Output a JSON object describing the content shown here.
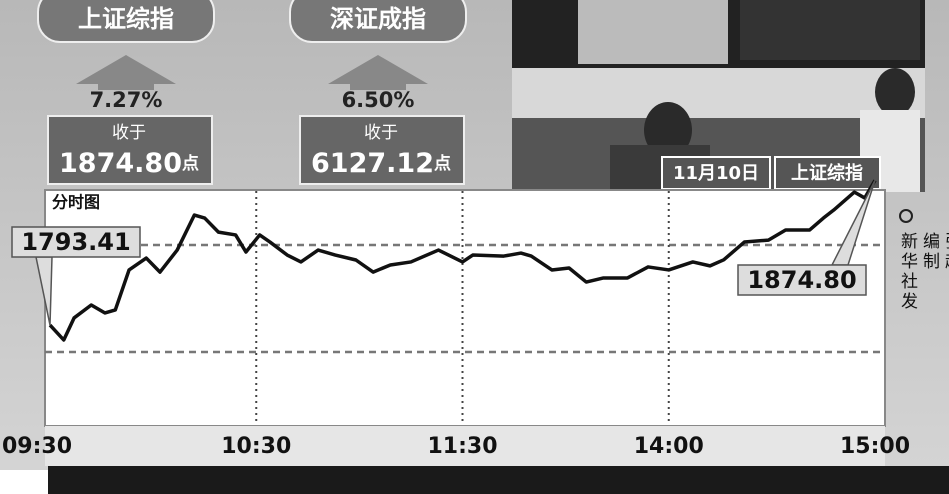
{
  "panels": [
    {
      "title": "上证综指",
      "change": "7.27%",
      "caption": "收于",
      "value": "1874.80",
      "unit": "点"
    },
    {
      "title": "深证成指",
      "change": "6.50%",
      "caption": "收于",
      "value": "6127.12",
      "unit": "点"
    }
  ],
  "photo": {
    "date": "11月10日",
    "index": "上证综指"
  },
  "credit": [
    "张越",
    "编制",
    "新华社发"
  ],
  "chart_data": {
    "type": "line",
    "title": "分时图",
    "x": [
      0,
      4,
      7,
      12,
      16,
      19,
      23,
      28,
      32,
      37,
      42,
      45,
      49,
      54,
      57,
      61,
      64,
      69,
      73,
      78,
      83,
      89,
      94,
      99,
      105,
      113,
      120,
      123,
      132,
      137,
      140,
      146,
      151,
      156,
      161,
      168,
      174,
      180,
      187,
      192,
      196,
      202,
      209,
      214,
      221,
      225,
      228,
      234,
      237,
      240
    ],
    "series": [
      {
        "color": "#111111",
        "values": [
          1793.41,
          1785.0,
          1797.4,
          1804.7,
          1800.2,
          1801.9,
          1824.4,
          1831.1,
          1823.2,
          1835.6,
          1855.3,
          1853.6,
          1845.7,
          1844.1,
          1834.5,
          1844.1,
          1840.1,
          1832.8,
          1828.9,
          1835.6,
          1832.8,
          1830.0,
          1823.2,
          1827.2,
          1828.9,
          1835.6,
          1828.9,
          1832.8,
          1832.2,
          1833.9,
          1832.2,
          1824.4,
          1825.5,
          1817.6,
          1819.9,
          1819.9,
          1826.1,
          1824.4,
          1828.9,
          1826.7,
          1830.1,
          1840.1,
          1841.2,
          1846.9,
          1846.9,
          1853.6,
          1858.1,
          1868.2,
          1864.9,
          1874.8
        ],
        "value_labels": [
          "1793.41",
          null,
          null,
          null,
          null,
          null,
          null,
          null,
          null,
          null,
          null,
          null,
          null,
          null,
          null,
          null,
          null,
          null,
          null,
          null,
          null,
          null,
          null,
          null,
          null,
          null,
          null,
          null,
          null,
          null,
          null,
          null,
          null,
          null,
          null,
          null,
          null,
          null,
          null,
          null,
          null,
          null,
          null,
          null,
          null,
          null,
          null,
          null,
          null,
          "1874.80"
        ]
      }
    ],
    "xlim": [
      0,
      240
    ],
    "xticks": [
      {
        "value": 0,
        "label": "09:30"
      },
      {
        "value": 60,
        "label": "10:30"
      },
      {
        "value": 120,
        "label": "11:30"
      },
      {
        "value": 180,
        "label": "14:00"
      },
      {
        "value": 240,
        "label": "15:00"
      }
    ],
    "ylim": [
      1740,
      1875
    ],
    "grid": true
  }
}
